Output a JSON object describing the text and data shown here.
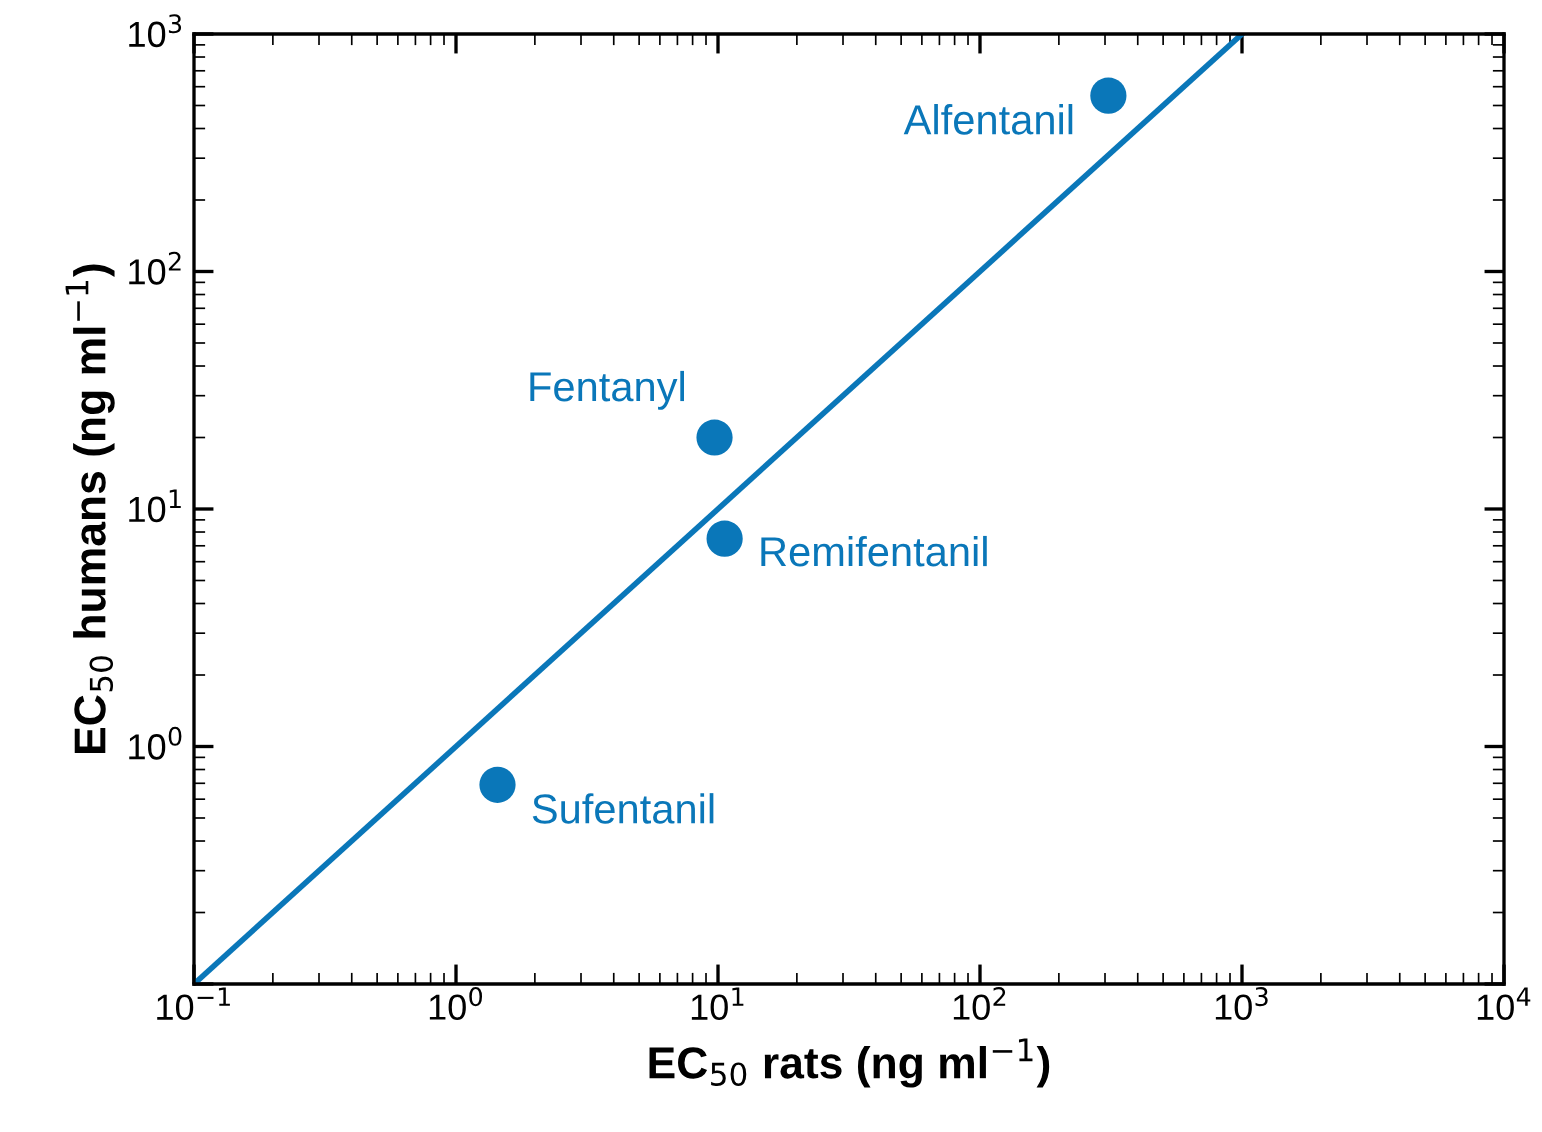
{
  "chart_data": {
    "type": "scatter",
    "xlabel": "EC$_{50}$ rats (ng ml$^{−1}$)",
    "ylabel": "EC$_{50}$ humans (ng ml$^{−1}$)",
    "log": "xy",
    "grid": false,
    "marker": "circle",
    "xlim": [
      0.1,
      10000
    ],
    "ylim": [
      0.1,
      1000
    ],
    "xticks": [
      {
        "value": 0.1,
        "label": "10$^{−1}$"
      },
      {
        "value": 1,
        "label": "10$^{0}$"
      },
      {
        "value": 10,
        "label": "10$^{1}$"
      },
      {
        "value": 100,
        "label": "10$^{2}$"
      },
      {
        "value": 1000,
        "label": "10$^{3}$"
      },
      {
        "value": 10000,
        "label": "10$^{4}$"
      }
    ],
    "yticks": [
      {
        "value": 0.1,
        "label": null
      },
      {
        "value": 1,
        "label": "10$^{0}$"
      },
      {
        "value": 10,
        "label": "10$^{1}$"
      },
      {
        "value": 100,
        "label": "10$^{2}$"
      },
      {
        "value": 1000,
        "label": "10$^{3}$"
      }
    ],
    "series": [
      {
        "color": "#0a77b9",
        "x": [
          1.44,
          9.7,
          10.6,
          309
        ],
        "values": [
          0.69,
          20,
          7.5,
          550
        ]
      },
      {
        "type": "line",
        "color": "#0a77b9",
        "x": [
          0.1,
          1000
        ],
        "values": [
          0.1,
          1000
        ],
        "marker": "none"
      }
    ],
    "annotations": [
      {
        "text": "Sufentanil",
        "x": 1.44,
        "y": 0.69
      },
      {
        "text": "Fentanyl",
        "x": 9.7,
        "y": 20
      },
      {
        "text": "Remifentanil",
        "x": 10.6,
        "y": 7.5
      },
      {
        "text": "Alfentanil",
        "x": 309,
        "y": 550
      }
    ]
  }
}
